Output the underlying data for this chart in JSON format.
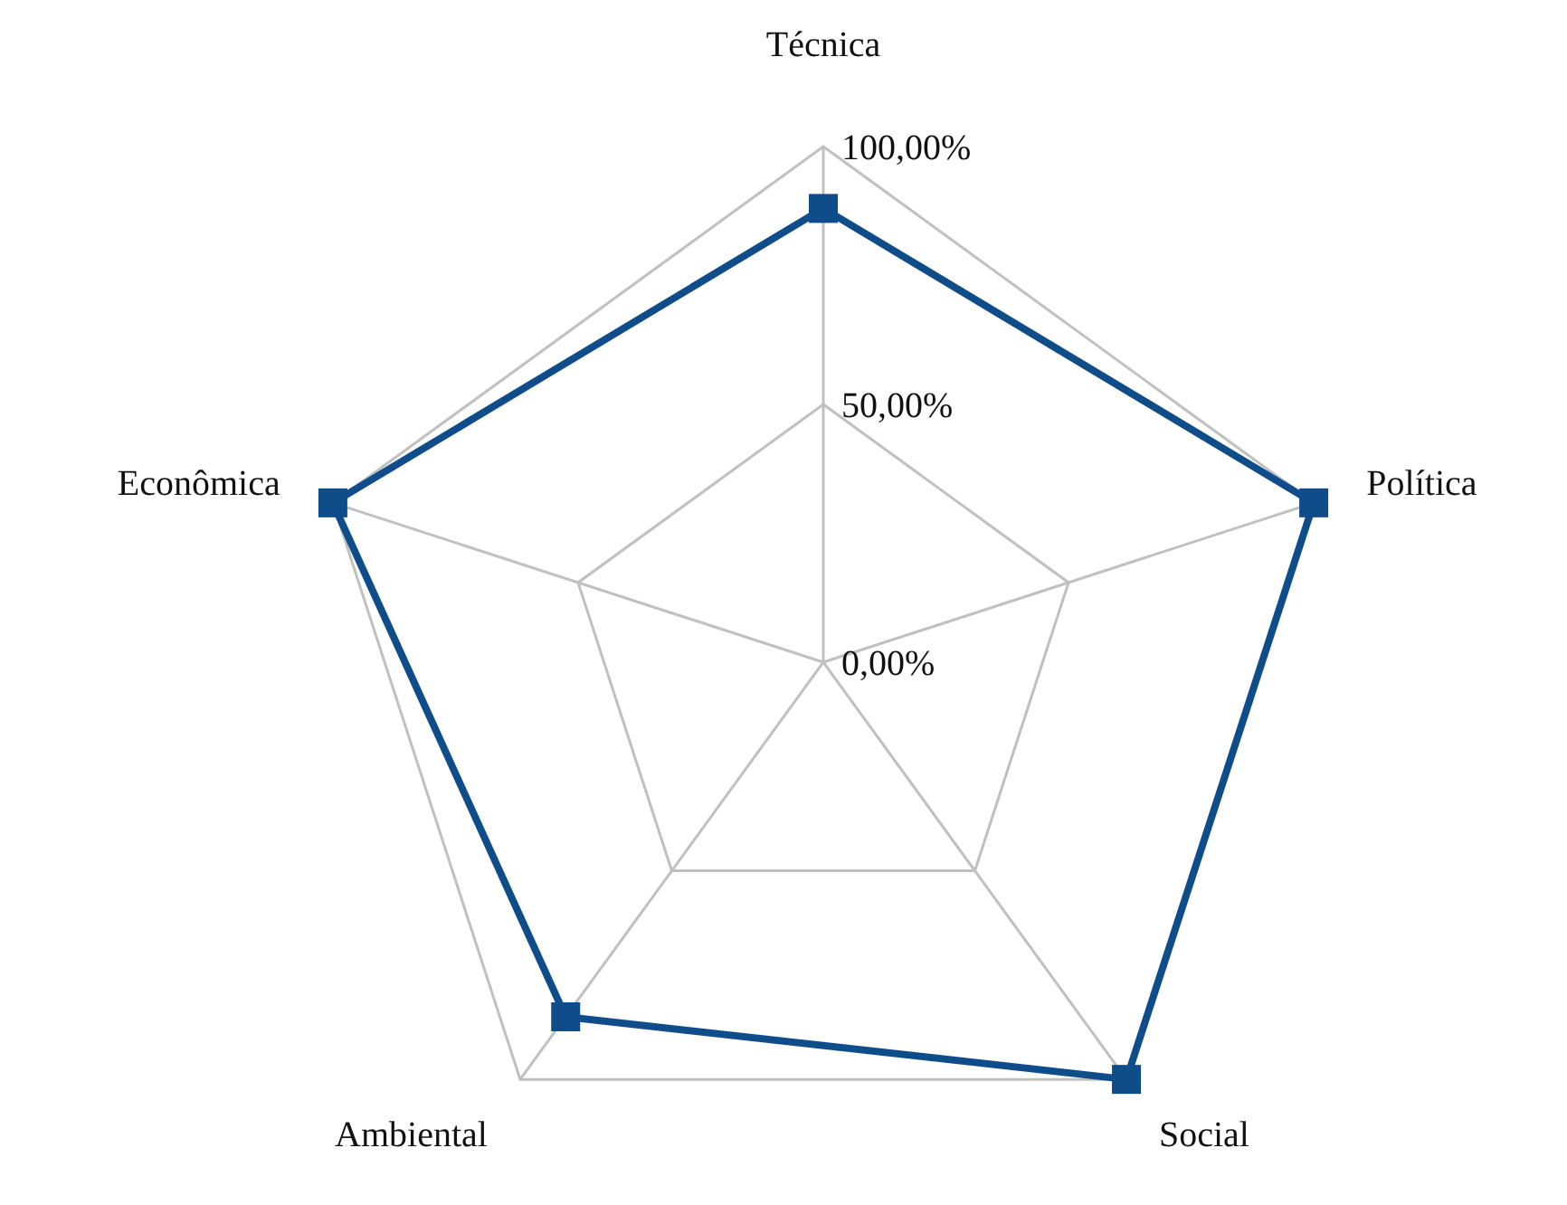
{
  "chart_data": {
    "type": "radar",
    "categories": [
      "Técnica",
      "Política",
      "Social",
      "Ambiental",
      "Econômica"
    ],
    "series": [
      {
        "color": "#0f4c8a",
        "values": [
          88,
          100,
          100,
          85,
          100
        ]
      }
    ],
    "ylim": [
      0,
      100
    ],
    "yticks": [
      {
        "value": 0,
        "label": "0,00%"
      },
      {
        "value": 50,
        "label": "50,00%"
      },
      {
        "value": 100,
        "label": "100,00%"
      }
    ],
    "grid": true,
    "legend": false,
    "marker": "square",
    "line_style": "solid"
  }
}
